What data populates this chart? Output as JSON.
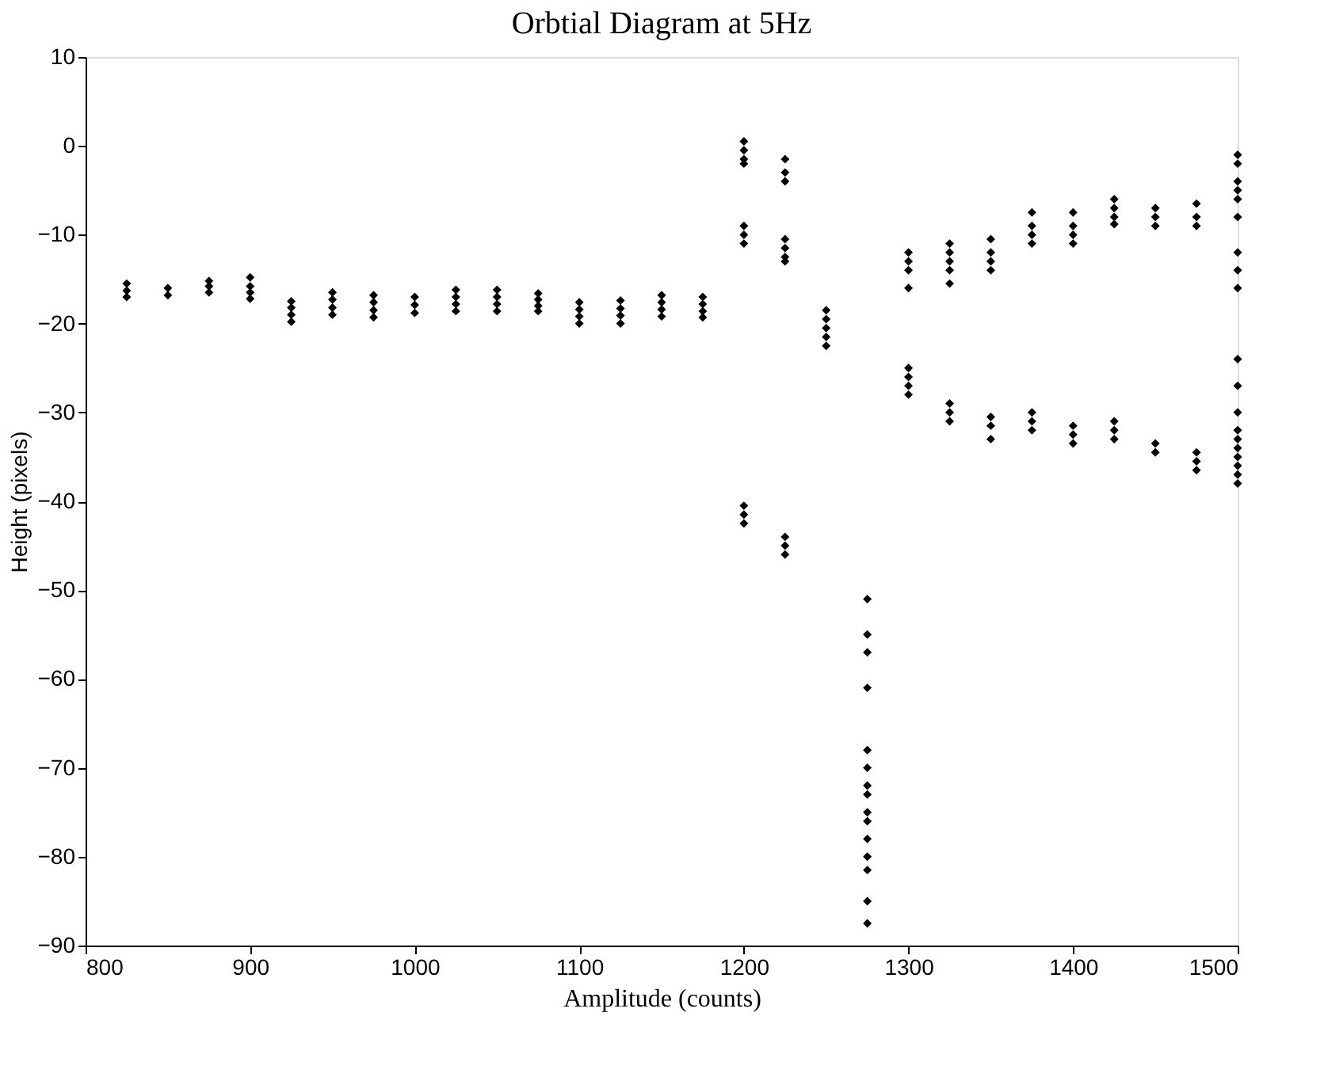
{
  "chart_data": {
    "type": "scatter",
    "title": "Orbtial Diagram at 5Hz",
    "xlabel": "Amplitude (counts)",
    "ylabel": "Height (pixels)",
    "x": [
      825,
      825,
      825,
      850,
      850,
      875,
      875,
      875,
      900,
      900,
      900,
      900,
      925,
      925,
      925,
      925,
      950,
      950,
      950,
      950,
      975,
      975,
      975,
      975,
      1000,
      1000,
      1000,
      1025,
      1025,
      1025,
      1025,
      1050,
      1050,
      1050,
      1050,
      1075,
      1075,
      1075,
      1075,
      1100,
      1100,
      1100,
      1100,
      1125,
      1125,
      1125,
      1125,
      1150,
      1150,
      1150,
      1150,
      1175,
      1175,
      1175,
      1175,
      1200,
      1200,
      1200,
      1200,
      1200,
      1200,
      1200,
      1200,
      1200,
      1200,
      1225,
      1225,
      1225,
      1225,
      1225,
      1225,
      1225,
      1225,
      1225,
      1225,
      1250,
      1250,
      1250,
      1250,
      1250,
      1275,
      1275,
      1275,
      1275,
      1275,
      1275,
      1275,
      1275,
      1275,
      1275,
      1275,
      1275,
      1275,
      1275,
      1275,
      1300,
      1300,
      1300,
      1300,
      1300,
      1300,
      1300,
      1300,
      1325,
      1325,
      1325,
      1325,
      1325,
      1325,
      1325,
      1325,
      1350,
      1350,
      1350,
      1350,
      1350,
      1350,
      1350,
      1375,
      1375,
      1375,
      1375,
      1375,
      1375,
      1375,
      1400,
      1400,
      1400,
      1400,
      1400,
      1400,
      1400,
      1425,
      1425,
      1425,
      1425,
      1425,
      1425,
      1425,
      1450,
      1450,
      1450,
      1450,
      1450,
      1475,
      1475,
      1475,
      1475,
      1475,
      1475,
      1500,
      1500,
      1500,
      1500,
      1500,
      1500,
      1500,
      1500,
      1500,
      1500,
      1500,
      1500,
      1500,
      1500,
      1500,
      1500,
      1500,
      1500,
      1500
    ],
    "values": [
      -15.5,
      -16.3,
      -17,
      -16,
      -16.8,
      -15.2,
      -15.8,
      -16.5,
      -14.8,
      -15.8,
      -16.5,
      -17.2,
      -17.5,
      -18.2,
      -19,
      -19.8,
      -16.5,
      -17.3,
      -18.2,
      -19,
      -16.8,
      -17.6,
      -18.5,
      -19.3,
      -17,
      -17.9,
      -18.8,
      -16.2,
      -17,
      -17.8,
      -18.6,
      -16.2,
      -17,
      -17.8,
      -18.6,
      -16.6,
      -17.3,
      -18,
      -18.6,
      -17.6,
      -18.4,
      -19.2,
      -20,
      -17.4,
      -18.3,
      -19.1,
      -20,
      -16.8,
      -17.6,
      -18.4,
      -19.2,
      -17,
      -17.8,
      -18.6,
      -19.3,
      0.5,
      -0.5,
      -1.5,
      -2,
      -9,
      -10,
      -11,
      -40.5,
      -41.5,
      -42.5,
      -1.5,
      -3,
      -4,
      -10.5,
      -11.5,
      -12.5,
      -13,
      -44,
      -45,
      -46,
      -18.5,
      -19.5,
      -20.5,
      -21.5,
      -22.5,
      -51,
      -55,
      -57,
      -61,
      -68,
      -70,
      -72,
      -73,
      -75,
      -76,
      -78,
      -80,
      -81.5,
      -85,
      -87.5,
      -12,
      -13,
      -14,
      -16,
      -25,
      -26,
      -27,
      -28,
      -11,
      -12,
      -13,
      -14,
      -15.5,
      -29,
      -30,
      -31,
      -10.5,
      -12,
      -13,
      -14,
      -30.5,
      -31.5,
      -33,
      -7.5,
      -9,
      -10,
      -11,
      -30,
      -31,
      -32,
      -7.5,
      -9,
      -10,
      -11,
      -31.5,
      -32.5,
      -33.5,
      -6,
      -7,
      -8,
      -8.8,
      -31,
      -32,
      -33,
      -7,
      -8,
      -9,
      -33.5,
      -34.5,
      -6.5,
      -8,
      -9,
      -34.5,
      -35.5,
      -36.5,
      -1,
      -2,
      -4,
      -5,
      -6,
      -8,
      -12,
      -14,
      -16,
      -24,
      -27,
      -30,
      -32,
      -33,
      -34,
      -35,
      -36,
      -37,
      -38
    ],
    "color": "#000000",
    "marker": "diamond",
    "grid": false,
    "xlim": [
      800,
      1500
    ],
    "xticks": [
      800,
      900,
      1000,
      1100,
      1200,
      1300,
      1400,
      1500
    ],
    "ylim": [
      -90,
      10
    ],
    "yticks": [
      -90,
      -80,
      -70,
      -60,
      -50,
      -40,
      -30,
      -20,
      -10,
      0,
      10
    ]
  }
}
